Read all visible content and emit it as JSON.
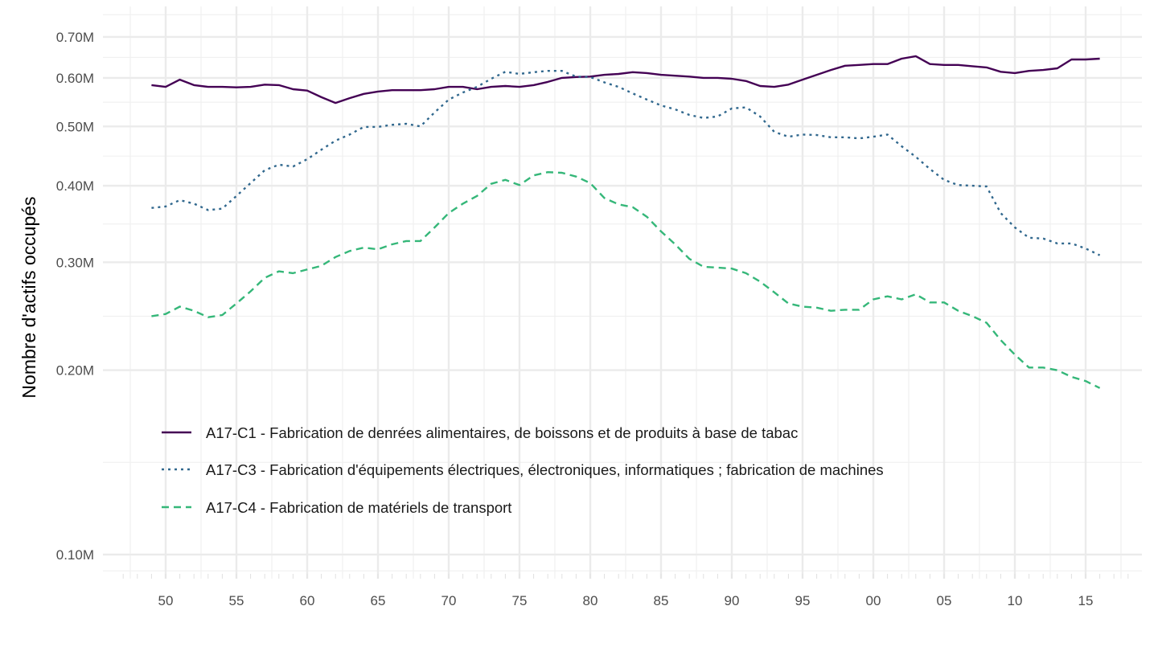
{
  "chart_data": {
    "type": "line",
    "title": "",
    "xlabel": "",
    "ylabel": "Nombre d'actifs occupés",
    "y_scale": "log",
    "ylim": [
      0.094,
      0.76
    ],
    "xlim": [
      1946.5,
      2018.5
    ],
    "y_ticks": [
      0.1,
      0.2,
      0.3,
      0.4,
      0.5,
      0.6,
      0.7
    ],
    "y_tick_labels": [
      "0.10M",
      "0.20M",
      "0.30M",
      "0.40M",
      "0.50M",
      "0.60M",
      "0.70M"
    ],
    "x_ticks": [
      1950,
      1955,
      1960,
      1965,
      1970,
      1975,
      1980,
      1985,
      1990,
      1995,
      2000,
      2005,
      2010,
      2015
    ],
    "x_tick_labels": [
      "50",
      "55",
      "60",
      "65",
      "70",
      "75",
      "80",
      "85",
      "90",
      "95",
      "00",
      "05",
      "10",
      "15"
    ],
    "grid": true,
    "legend_position": "bottom-left-inside",
    "x_start": 1949,
    "series": [
      {
        "name": "A17-C1 - Fabrication de denrées alimentaires, de boissons et de produits à base de tabac",
        "color": "#440154",
        "linetype": "solid",
        "values": [
          0.584,
          0.58,
          0.596,
          0.584,
          0.58,
          0.58,
          0.579,
          0.58,
          0.585,
          0.584,
          0.575,
          0.572,
          0.558,
          0.546,
          0.556,
          0.565,
          0.57,
          0.573,
          0.573,
          0.573,
          0.575,
          0.58,
          0.58,
          0.575,
          0.58,
          0.582,
          0.58,
          0.584,
          0.591,
          0.6,
          0.602,
          0.603,
          0.607,
          0.609,
          0.613,
          0.611,
          0.607,
          0.605,
          0.603,
          0.6,
          0.6,
          0.598,
          0.593,
          0.582,
          0.58,
          0.585,
          0.596,
          0.607,
          0.618,
          0.628,
          0.63,
          0.632,
          0.632,
          0.645,
          0.651,
          0.632,
          0.63,
          0.63,
          0.627,
          0.624,
          0.614,
          0.611,
          0.616,
          0.618,
          0.622,
          0.643,
          0.643,
          0.645
        ]
      },
      {
        "name": "A17-C3 - Fabrication d'équipements électriques, électroniques, informatiques ; fabrication de machines",
        "color": "#31688e",
        "linetype": "dotted",
        "values": [
          0.368,
          0.37,
          0.379,
          0.374,
          0.365,
          0.367,
          0.385,
          0.404,
          0.424,
          0.433,
          0.43,
          0.442,
          0.458,
          0.474,
          0.485,
          0.499,
          0.499,
          0.503,
          0.505,
          0.5,
          0.527,
          0.553,
          0.568,
          0.58,
          0.598,
          0.614,
          0.609,
          0.613,
          0.616,
          0.616,
          0.603,
          0.602,
          0.59,
          0.58,
          0.566,
          0.553,
          0.541,
          0.533,
          0.522,
          0.516,
          0.519,
          0.535,
          0.537,
          0.519,
          0.49,
          0.481,
          0.485,
          0.484,
          0.48,
          0.48,
          0.478,
          0.481,
          0.485,
          0.464,
          0.446,
          0.426,
          0.409,
          0.401,
          0.4,
          0.399,
          0.361,
          0.342,
          0.329,
          0.328,
          0.322,
          0.322,
          0.316,
          0.308
        ]
      },
      {
        "name": "A17-C4 - Fabrication de matériels de transport",
        "color": "#35b779",
        "linetype": "dashed",
        "values": [
          0.245,
          0.247,
          0.254,
          0.25,
          0.244,
          0.246,
          0.257,
          0.269,
          0.283,
          0.29,
          0.288,
          0.292,
          0.296,
          0.306,
          0.313,
          0.317,
          0.315,
          0.321,
          0.325,
          0.325,
          0.342,
          0.361,
          0.374,
          0.385,
          0.403,
          0.409,
          0.401,
          0.416,
          0.421,
          0.42,
          0.414,
          0.404,
          0.382,
          0.373,
          0.369,
          0.356,
          0.337,
          0.321,
          0.304,
          0.295,
          0.294,
          0.293,
          0.288,
          0.279,
          0.268,
          0.257,
          0.254,
          0.253,
          0.25,
          0.251,
          0.251,
          0.261,
          0.264,
          0.261,
          0.266,
          0.258,
          0.258,
          0.25,
          0.245,
          0.239,
          0.224,
          0.212,
          0.202,
          0.202,
          0.2,
          0.195,
          0.192,
          0.187
        ]
      }
    ]
  }
}
